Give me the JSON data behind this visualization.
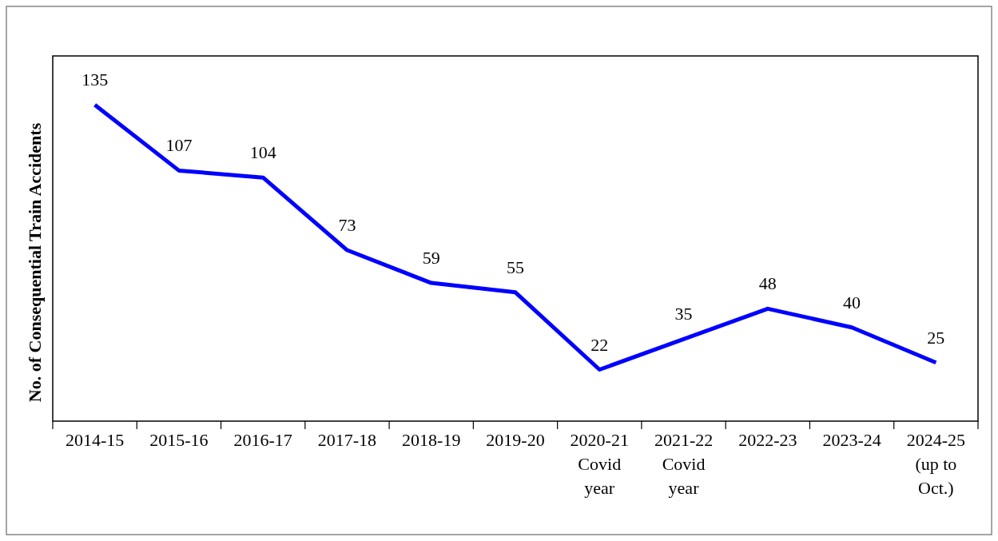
{
  "chart_data": {
    "type": "line",
    "ylabel": "No. of Consequential Train Accidents",
    "categories": [
      "2014-15",
      "2015-16",
      "2016-17",
      "2017-18",
      "2018-19",
      "2019-20",
      "2020-21\nCovid\nyear",
      "2021-22\nCovid\nyear",
      "2022-23",
      "2023-24",
      "2024-25\n(up to\nOct.)"
    ],
    "series": [
      {
        "color": "#0000ff",
        "values": [
          135,
          107,
          104,
          73,
          59,
          55,
          22,
          35,
          48,
          40,
          25
        ]
      }
    ],
    "data_labels": true,
    "marker": "none",
    "line_style": "solid"
  }
}
